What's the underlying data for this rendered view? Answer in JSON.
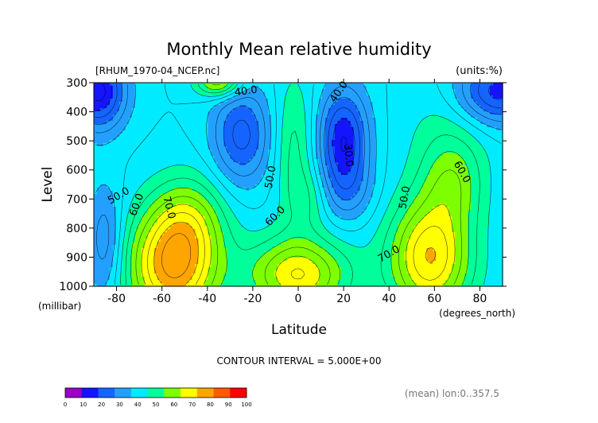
{
  "chart_data": {
    "type": "heatmap",
    "title": "Monthly Mean relative humidity",
    "source_label": "[RHUM_1970-04_NCEP.nc]",
    "units_label": "(units:%)",
    "xlabel": "Latitude",
    "xunit_label": "(degrees_north)",
    "ylabel": "Level",
    "yunit_label": "(millibar)",
    "xlim": [
      -90,
      90
    ],
    "ylim": [
      1000,
      300
    ],
    "x_ticks": [
      -80,
      -60,
      -40,
      -20,
      0,
      20,
      40,
      60,
      80
    ],
    "x_tick_labels": [
      "-80",
      "-60",
      "-40",
      "-20",
      "0",
      "20",
      "40",
      "60",
      "80"
    ],
    "y_ticks": [
      300,
      400,
      500,
      600,
      700,
      800,
      900,
      1000
    ],
    "y_tick_labels": [
      "300",
      "400",
      "500",
      "600",
      "700",
      "800",
      "900",
      "1000"
    ],
    "contour_interval_text": "CONTOUR INTERVAL = 5.000E+00",
    "mean_note": "(mean) lon:0..357.5",
    "contour_labels": [
      {
        "text": "40.0",
        "x": -23,
        "y": 330,
        "angle": -8
      },
      {
        "text": "40.0",
        "x": 18,
        "y": 332,
        "angle": -55
      },
      {
        "text": "30.0",
        "x": 22,
        "y": 550,
        "angle": 85
      },
      {
        "text": "50.0",
        "x": -12,
        "y": 625,
        "angle": -80
      },
      {
        "text": "50.0",
        "x": 47,
        "y": 695,
        "angle": -80
      },
      {
        "text": "50.0",
        "x": -79,
        "y": 690,
        "angle": -30
      },
      {
        "text": "60.0",
        "x": -71,
        "y": 720,
        "angle": -70
      },
      {
        "text": "60.0",
        "x": -10,
        "y": 760,
        "angle": -45
      },
      {
        "text": "60.0",
        "x": 72,
        "y": 608,
        "angle": 60
      },
      {
        "text": "70.0",
        "x": -57,
        "y": 730,
        "angle": 75
      },
      {
        "text": "70.0",
        "x": 40,
        "y": 890,
        "angle": -30
      }
    ],
    "colorbar": {
      "ticks": [
        "0",
        "10",
        "20",
        "30",
        "40",
        "50",
        "60",
        "70",
        "80",
        "90",
        "100"
      ],
      "colors": [
        "#9a00c8",
        "#1414ff",
        "#1464ff",
        "#23a0ff",
        "#00ebff",
        "#00ff9a",
        "#7dff00",
        "#ffff00",
        "#ffa500",
        "#ff5a00",
        "#ff0000"
      ]
    },
    "field": {
      "base": 45,
      "features": [
        {
          "lat": -25,
          "p": 480,
          "slat": 13,
          "sp": 170,
          "amp": -22
        },
        {
          "lat": 20,
          "p": 500,
          "slat": 11,
          "sp": 180,
          "amp": -30
        },
        {
          "lat": 22,
          "p": 680,
          "slat": 12,
          "sp": 110,
          "amp": -8
        },
        {
          "lat": -2,
          "p": 520,
          "slat": 9,
          "sp": 250,
          "amp": 12
        },
        {
          "lat": -55,
          "p": 930,
          "slat": 20,
          "sp": 200,
          "amp": 40
        },
        {
          "lat": -48,
          "p": 760,
          "slat": 16,
          "sp": 150,
          "amp": 14
        },
        {
          "lat": 58,
          "p": 900,
          "slat": 18,
          "sp": 200,
          "amp": 35
        },
        {
          "lat": 68,
          "p": 640,
          "slat": 14,
          "sp": 150,
          "amp": 15
        },
        {
          "lat": 0,
          "p": 960,
          "slat": 22,
          "sp": 130,
          "amp": 30
        },
        {
          "lat": 5,
          "p": 700,
          "slat": 9,
          "sp": 110,
          "amp": 8
        },
        {
          "lat": -35,
          "p": 300,
          "slat": 10,
          "sp": 50,
          "amp": 25
        },
        {
          "lat": 65,
          "p": 460,
          "slat": 20,
          "sp": 180,
          "amp": 6
        },
        {
          "lat": -88,
          "p": 330,
          "slat": 12,
          "sp": 130,
          "amp": -32
        },
        {
          "lat": 88,
          "p": 330,
          "slat": 18,
          "sp": 110,
          "amp": -28
        },
        {
          "lat": -85,
          "p": 850,
          "slat": 8,
          "sp": 200,
          "amp": -15
        }
      ]
    }
  }
}
